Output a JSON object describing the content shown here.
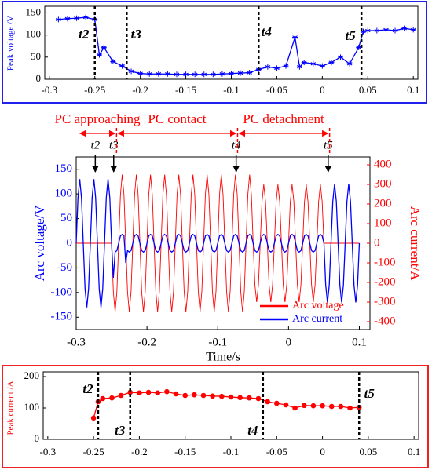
{
  "chart_data": [
    {
      "type": "line",
      "ylabel": "Peak voltage /V",
      "color": "#0000ff",
      "marker": "star",
      "x": [
        -0.29,
        -0.28,
        -0.27,
        -0.26,
        -0.25,
        -0.245,
        -0.24,
        -0.23,
        -0.22,
        -0.21,
        -0.2,
        -0.19,
        -0.18,
        -0.17,
        -0.16,
        -0.15,
        -0.14,
        -0.13,
        -0.12,
        -0.11,
        -0.1,
        -0.09,
        -0.08,
        -0.07,
        -0.06,
        -0.05,
        -0.04,
        -0.03,
        -0.025,
        -0.02,
        -0.01,
        0,
        0.01,
        0.02,
        0.03,
        0.04,
        0.045,
        0.05,
        0.06,
        0.07,
        0.08,
        0.09,
        0.1
      ],
      "values": [
        135,
        137,
        138,
        140,
        135,
        55,
        72,
        40,
        30,
        18,
        13,
        12,
        12,
        12,
        11,
        11,
        11,
        11,
        11,
        12,
        13,
        14,
        15,
        22,
        28,
        25,
        30,
        95,
        28,
        38,
        35,
        30,
        38,
        50,
        35,
        72,
        108,
        110,
        110,
        112,
        110,
        115,
        112
      ],
      "xlim": [
        -0.305,
        0.105
      ],
      "xticks": [
        -0.3,
        -0.25,
        -0.2,
        -0.15,
        -0.1,
        -0.05,
        0,
        0.05,
        0.1
      ],
      "ylim": [
        0,
        165
      ],
      "yticks": [
        0,
        50,
        100,
        150
      ],
      "annotations": [
        {
          "label": "t2",
          "x": -0.25
        },
        {
          "label": "t3",
          "x": -0.215
        },
        {
          "label": "t4",
          "x": -0.07
        },
        {
          "label": "t5",
          "x": 0.043
        }
      ]
    },
    {
      "type": "line",
      "ylabel": "Arc voltage/V",
      "y2label": "Arc current/A",
      "xlabel": "Time/s",
      "legend": "lower right",
      "x": [
        -0.3,
        -0.2975,
        -0.295,
        -0.2925,
        -0.29,
        -0.2875,
        -0.285,
        -0.2825,
        -0.28,
        -0.2775,
        -0.275,
        -0.2725,
        -0.27,
        -0.2675,
        -0.265,
        -0.2625,
        -0.26,
        -0.2575,
        -0.255,
        -0.2525,
        -0.25,
        -0.2475,
        -0.245,
        -0.2425,
        -0.24,
        -0.2375,
        -0.235,
        -0.2325,
        -0.23,
        -0.2275,
        -0.225,
        -0.2225,
        -0.22,
        -0.2175,
        -0.215,
        -0.2125,
        -0.21,
        -0.2075,
        -0.205,
        -0.2025,
        -0.2,
        -0.1975,
        -0.195,
        -0.1925,
        -0.19,
        -0.1875,
        -0.185,
        -0.1825,
        -0.18,
        -0.1775,
        -0.175,
        -0.1725,
        -0.17,
        -0.1675,
        -0.165,
        -0.1625,
        -0.16,
        -0.1575,
        -0.155,
        -0.1525,
        -0.15,
        -0.1475,
        -0.145,
        -0.1425,
        -0.14,
        -0.1375,
        -0.135,
        -0.1325,
        -0.13,
        -0.1275,
        -0.125,
        -0.1225,
        -0.12,
        -0.1175,
        -0.115,
        -0.1125,
        -0.11,
        -0.1075,
        -0.105,
        -0.1025,
        -0.1,
        -0.0975,
        -0.095,
        -0.0925,
        -0.09,
        -0.0875,
        -0.085,
        -0.0825,
        -0.08,
        -0.0775,
        -0.075,
        -0.0725,
        -0.07,
        -0.0675,
        -0.065,
        -0.0625,
        -0.06,
        -0.0575,
        -0.055,
        -0.0525,
        -0.05,
        -0.0475,
        -0.045,
        -0.0425,
        -0.04,
        -0.0375,
        -0.035,
        -0.0325,
        -0.03,
        -0.0275,
        -0.025,
        -0.0225,
        -0.02,
        -0.0175,
        -0.015,
        -0.0125,
        -0.01,
        -0.0075,
        -0.005,
        -0.0025,
        0,
        0.0025,
        0.005,
        0.0075,
        0.01,
        0.0125,
        0.015,
        0.0175,
        0.02,
        0.0225,
        0.025,
        0.0275,
        0.03,
        0.0325,
        0.035,
        0.0375,
        0.04,
        0.0425,
        0.045,
        0.0475,
        0.05,
        0.0525,
        0.055,
        0.0575,
        0.06,
        0.0625,
        0.065,
        0.0675,
        0.07,
        0.0725,
        0.075,
        0.0775,
        0.08,
        0.0825,
        0.085,
        0.0875,
        0.09,
        0.0925,
        0.095,
        0.0975,
        0.1
      ],
      "series": [
        {
          "name": "Arc voltage",
          "color": "#ff0000",
          "axis": "y2",
          "values": [
            0,
            0,
            0,
            0,
            0,
            0,
            0,
            0,
            0,
            0,
            0,
            0,
            0,
            0,
            0,
            0,
            0,
            0,
            0,
            0,
            0,
            -247,
            -350,
            -247,
            0,
            247,
            350,
            247,
            0,
            -247,
            -350,
            -247,
            0,
            247,
            350,
            247,
            0,
            -247,
            -350,
            -247,
            0,
            247,
            350,
            247,
            0,
            -247,
            -350,
            -247,
            0,
            247,
            350,
            247,
            0,
            -247,
            -350,
            -247,
            0,
            247,
            350,
            247,
            0,
            -247,
            -350,
            -247,
            0,
            247,
            350,
            247,
            0,
            -247,
            -350,
            -247,
            0,
            247,
            350,
            247,
            0,
            -247,
            -350,
            -247,
            0,
            247,
            350,
            247,
            0,
            -247,
            -350,
            -247,
            0,
            247,
            350,
            247,
            0,
            -247,
            -350,
            -247,
            0,
            247,
            350,
            247,
            0,
            -212,
            -300,
            -212,
            0,
            212,
            300,
            212,
            0,
            -212,
            -300,
            -212,
            0,
            212,
            300,
            212,
            0,
            -212,
            -300,
            -212,
            0,
            212,
            300,
            212,
            0,
            -212,
            -300,
            -212,
            0,
            212,
            300,
            212,
            0,
            -212,
            -300,
            -212,
            0,
            212,
            300,
            212,
            0,
            0,
            0,
            0,
            0,
            0,
            0,
            0,
            0,
            0,
            0,
            0,
            0,
            0,
            0,
            0,
            0,
            0,
            0,
            0,
            0
          ]
        },
        {
          "name": "Arc current",
          "color": "#0000ff",
          "values": [
            0,
            92,
            130,
            92,
            0,
            -92,
            -130,
            -92,
            0,
            92,
            130,
            92,
            0,
            -92,
            -130,
            -92,
            0,
            92,
            130,
            92,
            0,
            -70,
            -18,
            -15,
            0,
            15,
            18,
            15,
            -40,
            -15,
            -18,
            -15,
            0,
            15,
            18,
            15,
            0,
            -15,
            -18,
            -15,
            0,
            15,
            18,
            15,
            0,
            -15,
            -18,
            -15,
            0,
            15,
            18,
            15,
            0,
            -15,
            -18,
            -15,
            0,
            15,
            18,
            15,
            0,
            -15,
            -18,
            -15,
            0,
            15,
            18,
            15,
            0,
            -15,
            -18,
            -15,
            0,
            15,
            18,
            15,
            0,
            -15,
            -18,
            -15,
            0,
            15,
            18,
            15,
            0,
            -15,
            -18,
            -15,
            0,
            15,
            18,
            15,
            0,
            -15,
            -18,
            -15,
            0,
            15,
            18,
            15,
            0,
            -15,
            -18,
            -15,
            0,
            15,
            18,
            15,
            0,
            -15,
            -18,
            -15,
            0,
            15,
            18,
            15,
            0,
            -15,
            -18,
            -15,
            0,
            15,
            18,
            15,
            0,
            -15,
            -18,
            -15,
            0,
            15,
            18,
            15,
            0,
            -15,
            -18,
            -15,
            0,
            15,
            18,
            15,
            0,
            -85,
            -120,
            -85,
            0,
            85,
            120,
            85,
            0,
            -85,
            -120,
            -85,
            0,
            85,
            120,
            85,
            0,
            -85,
            -120,
            -85,
            0
          ]
        }
      ],
      "xlim": [
        -0.3,
        0.115
      ],
      "xticks": [
        -0.3,
        -0.2,
        -0.1,
        0,
        0.1
      ],
      "ylim": [
        -175,
        175
      ],
      "yticks": [
        -150,
        -100,
        -50,
        0,
        50,
        100,
        150
      ],
      "y2lim": [
        -440,
        440
      ],
      "y2ticks": [
        -400,
        -300,
        -200,
        -100,
        0,
        100,
        200,
        300,
        400
      ],
      "phases": [
        {
          "label": "PC approaching",
          "start": -0.297,
          "end": -0.243
        },
        {
          "label": "PC contact",
          "start": -0.243,
          "end": -0.072
        },
        {
          "label": "PC detachment",
          "start": -0.072,
          "end": 0.058
        }
      ],
      "annotations": [
        {
          "label": "t2",
          "x": -0.273
        },
        {
          "label": "t3",
          "x": -0.247
        },
        {
          "label": "t4",
          "x": -0.074
        },
        {
          "label": "t5",
          "x": 0.056
        }
      ]
    },
    {
      "type": "line",
      "ylabel": "Peak current /A",
      "color": "#ff0000",
      "marker": "circle",
      "x": [
        -0.25,
        -0.245,
        -0.24,
        -0.23,
        -0.22,
        -0.21,
        -0.2,
        -0.19,
        -0.18,
        -0.17,
        -0.16,
        -0.15,
        -0.14,
        -0.13,
        -0.12,
        -0.11,
        -0.1,
        -0.09,
        -0.08,
        -0.07,
        -0.06,
        -0.05,
        -0.04,
        -0.03,
        -0.02,
        -0.01,
        0,
        0.01,
        0.02,
        0.03,
        0.04
      ],
      "values": [
        68,
        120,
        130,
        132,
        140,
        150,
        148,
        150,
        148,
        152,
        145,
        140,
        142,
        140,
        138,
        137,
        135,
        133,
        132,
        130,
        120,
        115,
        110,
        100,
        108,
        107,
        107,
        105,
        105,
        100,
        102
      ],
      "xlim": [
        -0.305,
        0.105
      ],
      "xticks": [
        -0.3,
        -0.25,
        -0.2,
        -0.15,
        -0.1,
        -0.05,
        0,
        0.05,
        0.1
      ],
      "ylim": [
        0,
        215
      ],
      "yticks": [
        0,
        100,
        200
      ],
      "annotations": [
        {
          "label": "t2",
          "x": -0.245
        },
        {
          "label": "t3",
          "x": -0.21
        },
        {
          "label": "t4",
          "x": -0.065
        },
        {
          "label": "t5",
          "x": 0.04
        }
      ]
    }
  ]
}
